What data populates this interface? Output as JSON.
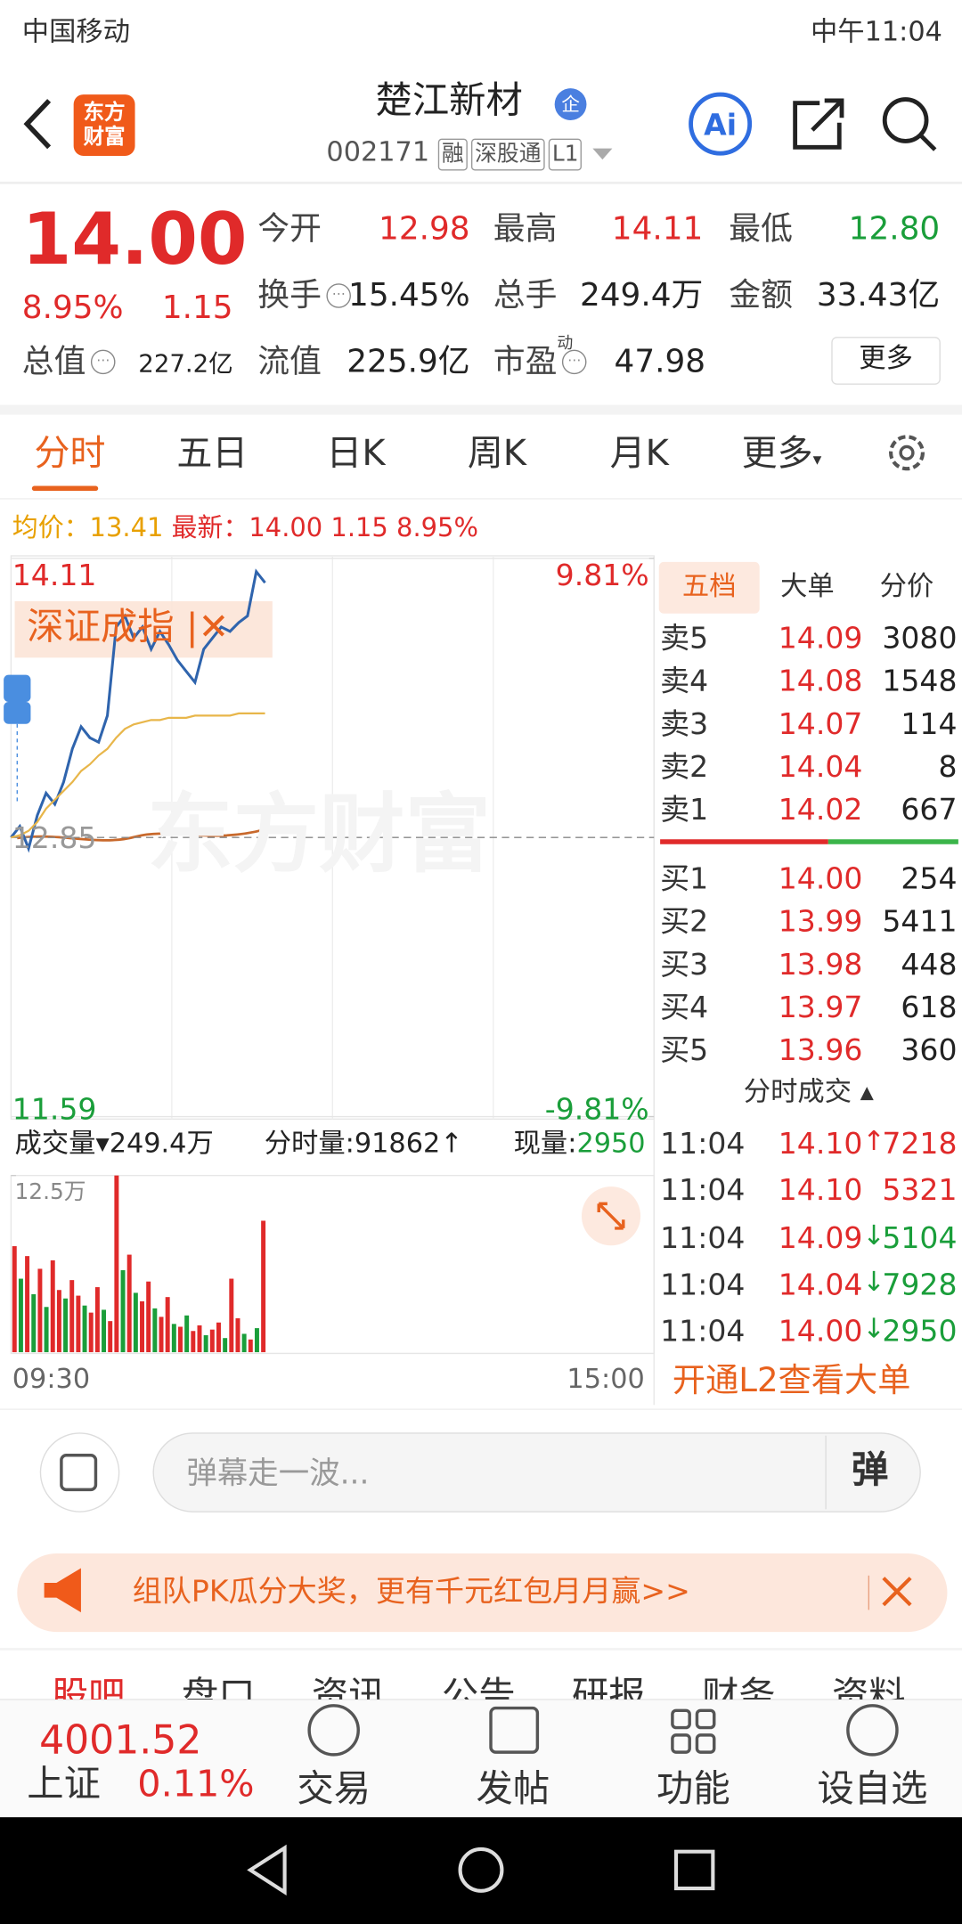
{
  "status_bar": {
    "carrier": "中国移动",
    "time": "中午11:04"
  },
  "header": {
    "logo": "东方财富",
    "title": "楚江新材",
    "badge": "企",
    "code": "002171",
    "tags": [
      "融",
      "深股通",
      "L1"
    ]
  },
  "quote": {
    "price": "14.00",
    "change_pct": "8.95%",
    "change": "1.15",
    "stats": [
      {
        "label": "今开",
        "value": "12.98"
      },
      {
        "label": "最高",
        "value": "14.11"
      },
      {
        "label": "最低",
        "value": "12.80"
      },
      {
        "label": "换手",
        "value": "15.45%"
      },
      {
        "label": "总手",
        "value": "249.4万"
      },
      {
        "label": "金额",
        "value": "33.43亿"
      },
      {
        "label": "总值",
        "value": "227.2亿"
      },
      {
        "label": "流值",
        "value": "225.9亿"
      },
      {
        "label": "市盈",
        "sup": "动",
        "value": "47.98"
      }
    ],
    "more": "更多"
  },
  "tabs": [
    "分时",
    "五日",
    "日K",
    "周K",
    "月K",
    "更多"
  ],
  "summary": {
    "avg_label": "均价：",
    "avg": "13.41",
    "latest_label": "最新：",
    "latest": "14.00",
    "change": "1.15",
    "change_pct": "8.95%"
  },
  "chart_data": {
    "type": "line",
    "watermark": "东方财富",
    "index_label": "深证成指",
    "ylim": [
      11.59,
      14.11
    ],
    "yticks": [
      11.59,
      12.85,
      14.11
    ],
    "y2lim": [
      -9.81,
      9.81
    ],
    "y2ticks": [
      {
        "value": -9.81,
        "label": "-9.81%"
      },
      {
        "value": 9.81,
        "label": "9.81%"
      }
    ],
    "x_labels": [
      "09:30",
      "15:00"
    ],
    "series": [
      {
        "color": "#2f64ad",
        "values": [
          12.85,
          12.9,
          12.8,
          12.95,
          13.05,
          13.0,
          13.1,
          13.25,
          13.35,
          13.3,
          13.28,
          13.4,
          13.8,
          13.85,
          13.75,
          13.8,
          13.7,
          13.78,
          13.72,
          13.65,
          13.6,
          13.55,
          13.7,
          13.75,
          13.8,
          13.78,
          13.82,
          13.85,
          14.05,
          14.0
        ]
      },
      {
        "color": "#e8b64a",
        "values": [
          12.85,
          12.86,
          12.88,
          12.92,
          12.98,
          13.02,
          13.06,
          13.1,
          13.15,
          13.18,
          13.22,
          13.25,
          13.3,
          13.34,
          13.36,
          13.37,
          13.38,
          13.38,
          13.39,
          13.39,
          13.39,
          13.4,
          13.4,
          13.4,
          13.4,
          13.4,
          13.41,
          13.41,
          13.41,
          13.41
        ]
      }
    ]
  },
  "volume": {
    "label": "成交量",
    "total": "249.4万",
    "interval_label": "分时量:",
    "interval": "91862↑",
    "now_label": "现量:",
    "now": "2950",
    "ylim": [
      0,
      12.5
    ],
    "yticks": [
      {
        "value": 12.5,
        "label": "12.5万"
      }
    ],
    "series": [
      {
        "color": "#e02a2a",
        "values": [
          7.5,
          null,
          6.8,
          null,
          5.9,
          null,
          6.5,
          4.4,
          null,
          5.1,
          4.0,
          null,
          2.8,
          4.6,
          null,
          2.2,
          12.5,
          null,
          6.9,
          null,
          3.6,
          5.0,
          null,
          2.5,
          3.9,
          null,
          1.8,
          null,
          1.5,
          1.9,
          null,
          1.6,
          2.1,
          null,
          5.2,
          2.4,
          null,
          0.9,
          null,
          9.3
        ]
      },
      {
        "color": "#1a9e3a",
        "values": [
          null,
          5.2,
          null,
          4.1,
          null,
          3.2,
          null,
          null,
          3.8,
          null,
          null,
          3.3,
          null,
          null,
          3.0,
          null,
          null,
          5.8,
          null,
          4.2,
          null,
          null,
          3.1,
          null,
          null,
          2.0,
          null,
          2.6,
          null,
          null,
          1.2,
          null,
          null,
          1.0,
          null,
          null,
          1.3,
          null,
          1.7,
          null
        ]
      }
    ]
  },
  "order_book": {
    "tabs": [
      "五档",
      "大单",
      "分价"
    ],
    "sells": [
      {
        "label": "卖5",
        "price": "14.09",
        "volume": "3080"
      },
      {
        "label": "卖4",
        "price": "14.08",
        "volume": "1548"
      },
      {
        "label": "卖3",
        "price": "14.07",
        "volume": "114"
      },
      {
        "label": "卖2",
        "price": "14.04",
        "volume": "8"
      },
      {
        "label": "卖1",
        "price": "14.02",
        "volume": "667"
      }
    ],
    "buys": [
      {
        "label": "买1",
        "price": "14.00",
        "volume": "254"
      },
      {
        "label": "买2",
        "price": "13.99",
        "volume": "5411"
      },
      {
        "label": "买3",
        "price": "13.98",
        "volume": "448"
      },
      {
        "label": "买4",
        "price": "13.97",
        "volume": "618"
      },
      {
        "label": "买5",
        "price": "13.96",
        "volume": "360"
      }
    ],
    "trades_title": "分时成交",
    "trades": [
      {
        "time": "11:04",
        "price": "14.10",
        "arrow": "↑",
        "volume": "7218"
      },
      {
        "time": "11:04",
        "price": "14.10",
        "arrow": "",
        "volume": "5321"
      },
      {
        "time": "11:04",
        "price": "14.09",
        "arrow": "↓",
        "volume": "5104"
      },
      {
        "time": "11:04",
        "price": "14.04",
        "arrow": "↓",
        "volume": "7928"
      },
      {
        "time": "11:04",
        "price": "14.00",
        "arrow": "↓",
        "volume": "2950"
      }
    ],
    "l2": "开通L2查看大单"
  },
  "comment": {
    "placeholder": "弹幕走一波...",
    "button": "弹"
  },
  "banner": "组队PK瓜分大奖，更有千元红包月月赢>>",
  "sub_tabs": [
    "股吧",
    "盘口",
    "资讯",
    "公告",
    "研报",
    "财务",
    "资料"
  ],
  "bottom": {
    "index_value": "4001.52",
    "index_name": "上证",
    "index_change": "0.11%",
    "items": [
      "交易",
      "发帖",
      "功能",
      "设自选"
    ]
  }
}
